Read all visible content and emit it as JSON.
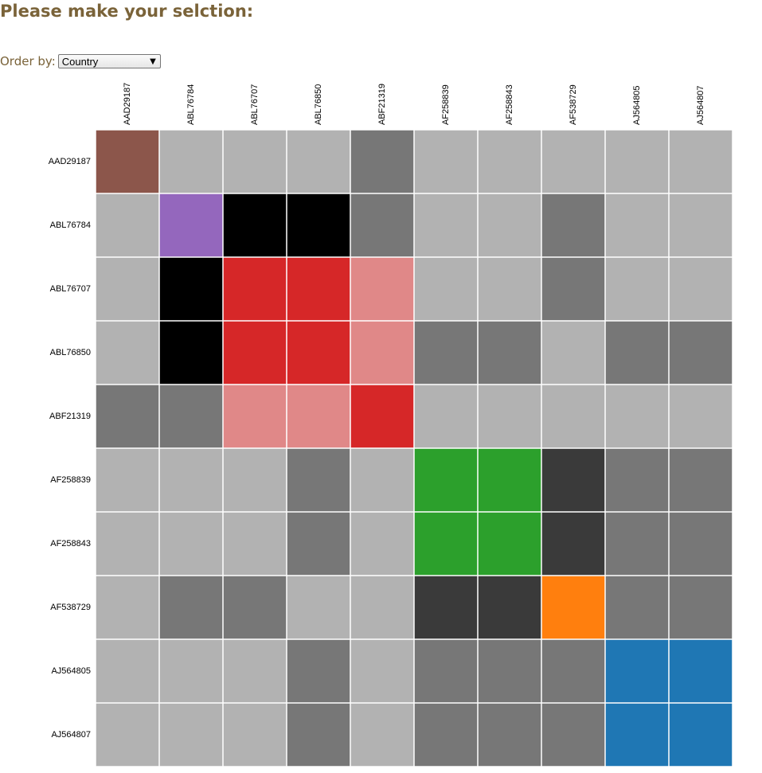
{
  "page": {
    "title": "Please make your selction:",
    "order_label": "Order by:",
    "order_selected": "Country"
  },
  "chart_data": {
    "type": "heatmap",
    "labels": [
      "AAD29187",
      "ABL76784",
      "ABL76707",
      "ABL76850",
      "ABF21319",
      "AF258839",
      "AF258843",
      "AF538729",
      "AJ564805",
      "AJ564807"
    ],
    "legend": [],
    "colors": {
      "brown": "#8c564b",
      "purple": "#9467bd",
      "black": "#000000",
      "red": "#d62728",
      "pink": "#e08888",
      "green": "#2ca02c",
      "orange": "#ff7f0e",
      "blue": "#1f77b4",
      "lightgray": "#b2b2b2",
      "midgray": "#777777",
      "darkgray": "#3a3a3a"
    },
    "cells": [
      [
        "brown",
        "lightgray",
        "lightgray",
        "lightgray",
        "midgray",
        "lightgray",
        "lightgray",
        "lightgray",
        "lightgray",
        "lightgray"
      ],
      [
        "lightgray",
        "purple",
        "black",
        "black",
        "midgray",
        "lightgray",
        "lightgray",
        "midgray",
        "lightgray",
        "lightgray"
      ],
      [
        "lightgray",
        "black",
        "red",
        "red",
        "pink",
        "lightgray",
        "lightgray",
        "midgray",
        "lightgray",
        "lightgray"
      ],
      [
        "lightgray",
        "black",
        "red",
        "red",
        "pink",
        "midgray",
        "midgray",
        "lightgray",
        "midgray",
        "midgray"
      ],
      [
        "midgray",
        "midgray",
        "pink",
        "pink",
        "red",
        "lightgray",
        "lightgray",
        "lightgray",
        "lightgray",
        "lightgray"
      ],
      [
        "lightgray",
        "lightgray",
        "lightgray",
        "midgray",
        "lightgray",
        "green",
        "green",
        "darkgray",
        "midgray",
        "midgray"
      ],
      [
        "lightgray",
        "lightgray",
        "lightgray",
        "midgray",
        "lightgray",
        "green",
        "green",
        "darkgray",
        "midgray",
        "midgray"
      ],
      [
        "lightgray",
        "midgray",
        "midgray",
        "lightgray",
        "lightgray",
        "darkgray",
        "darkgray",
        "orange",
        "midgray",
        "midgray"
      ],
      [
        "lightgray",
        "lightgray",
        "lightgray",
        "midgray",
        "lightgray",
        "midgray",
        "midgray",
        "midgray",
        "blue",
        "blue"
      ],
      [
        "lightgray",
        "lightgray",
        "lightgray",
        "midgray",
        "lightgray",
        "midgray",
        "midgray",
        "midgray",
        "blue",
        "blue"
      ]
    ]
  }
}
